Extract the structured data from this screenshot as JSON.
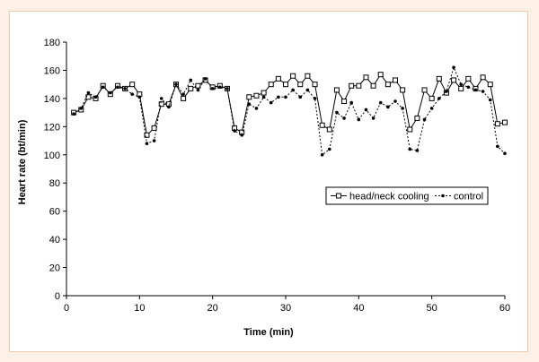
{
  "chart_data": {
    "type": "line",
    "xlabel": "Time (min)",
    "ylabel": "Heart rate (bt/min)",
    "xlim": [
      0,
      60
    ],
    "ylim": [
      0,
      180
    ],
    "xticks": [
      0,
      10,
      20,
      30,
      40,
      50,
      60
    ],
    "yticks": [
      0,
      20,
      40,
      60,
      80,
      100,
      120,
      140,
      160,
      180
    ],
    "legend_position": "center-right",
    "series": [
      {
        "name": "head/neck cooling",
        "color": "#000000",
        "marker": "square-open",
        "line": "solid",
        "x": [
          1,
          2,
          3,
          4,
          5,
          6,
          7,
          8,
          9,
          10,
          11,
          12,
          13,
          14,
          15,
          16,
          17,
          18,
          19,
          20,
          21,
          22,
          23,
          24,
          25,
          26,
          27,
          28,
          29,
          30,
          31,
          32,
          33,
          34,
          35,
          36,
          37,
          38,
          39,
          40,
          41,
          42,
          43,
          44,
          45,
          46,
          47,
          48,
          49,
          50,
          51,
          52,
          53,
          54,
          55,
          56,
          57,
          58,
          59,
          60
        ],
        "values": [
          130,
          132,
          141,
          140,
          149,
          143,
          149,
          147,
          150,
          143,
          114,
          119,
          136,
          136,
          150,
          140,
          147,
          149,
          153,
          148,
          149,
          147,
          119,
          116,
          141,
          142,
          144,
          150,
          154,
          150,
          156,
          150,
          156,
          150,
          121,
          118,
          146,
          138,
          149,
          149,
          155,
          149,
          157,
          150,
          153,
          146,
          118,
          126,
          146,
          140,
          154,
          144,
          153,
          147,
          154,
          147,
          155,
          150,
          122,
          123
        ]
      },
      {
        "name": "control",
        "color": "#000000",
        "marker": "dot-filled",
        "line": "dotted",
        "x": [
          1,
          2,
          3,
          4,
          5,
          6,
          7,
          8,
          9,
          10,
          11,
          12,
          13,
          14,
          15,
          16,
          17,
          18,
          19,
          20,
          21,
          22,
          23,
          24,
          25,
          26,
          27,
          28,
          29,
          30,
          31,
          32,
          33,
          34,
          35,
          36,
          37,
          38,
          39,
          40,
          41,
          42,
          43,
          44,
          45,
          46,
          47,
          48,
          49,
          50,
          51,
          52,
          53,
          54,
          55,
          56,
          57,
          58,
          59,
          60
        ],
        "values": [
          129,
          133,
          144,
          141,
          148,
          144,
          148,
          147,
          143,
          141,
          108,
          110,
          140,
          134,
          150,
          143,
          153,
          146,
          154,
          147,
          148,
          147,
          117,
          114,
          136,
          133,
          141,
          137,
          141,
          141,
          146,
          141,
          146,
          140,
          100,
          104,
          130,
          126,
          137,
          125,
          132,
          126,
          137,
          134,
          138,
          133,
          104,
          103,
          125,
          133,
          140,
          145,
          162,
          150,
          148,
          146,
          145,
          139,
          106,
          101
        ]
      }
    ]
  }
}
